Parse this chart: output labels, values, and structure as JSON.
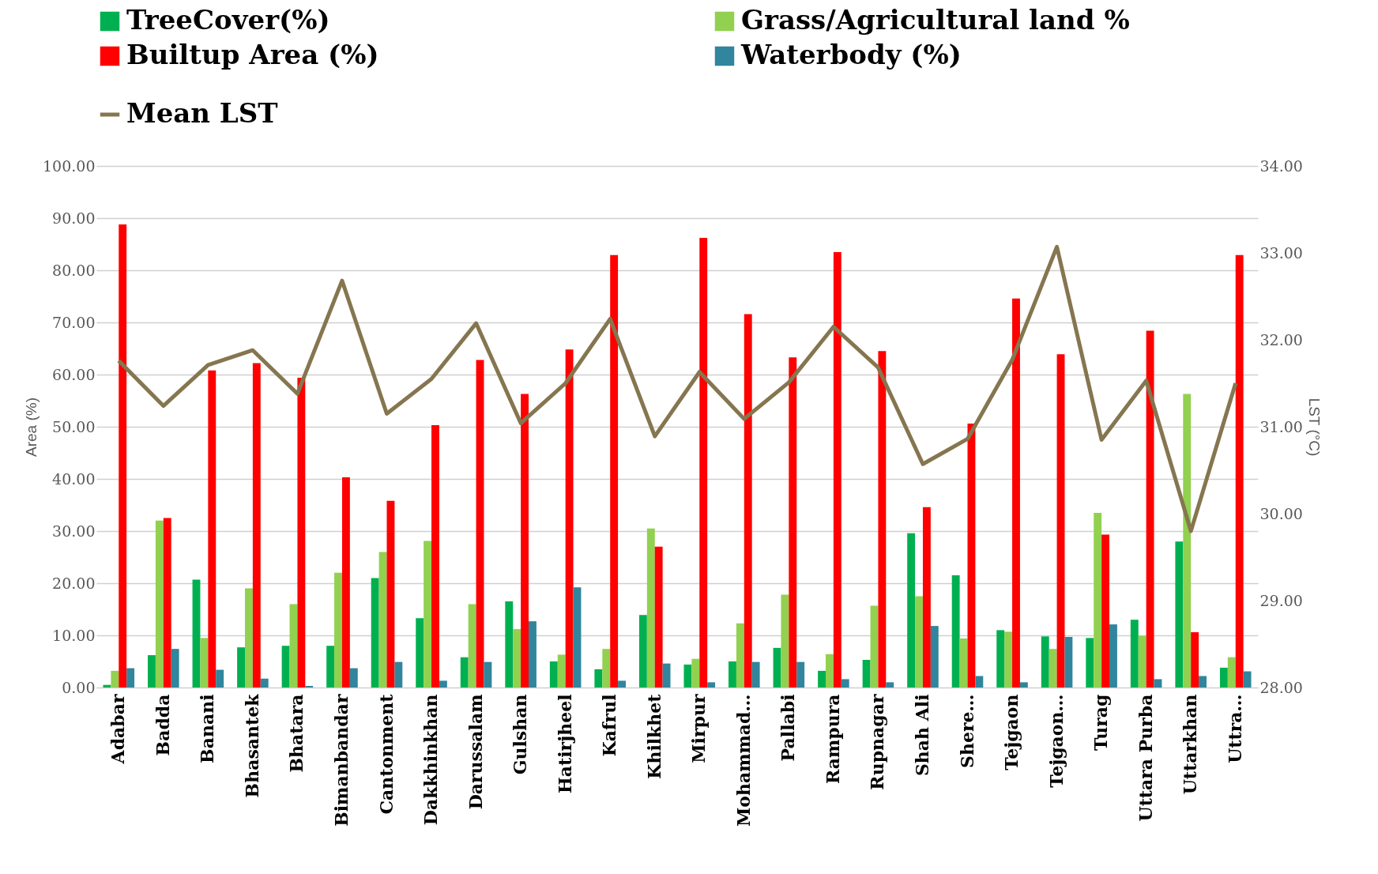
{
  "chart_data": {
    "type": "bar",
    "categories": [
      "Adabar",
      "Badda",
      "Banani",
      "Bhasantek",
      "Bhatara",
      "Bimanbandar",
      "Cantonment",
      "Dakkhinkhan",
      "Darussalam",
      "Gulshan",
      "Hatirjheel",
      "Kafrul",
      "Khilkhet",
      "Mirpur",
      "Mohammad…",
      "Pallabi",
      "Rampura",
      "Rupnagar",
      "Shah Ali",
      "Shere…",
      "Tejgaon",
      "Tejgaon…",
      "Turag",
      "Uttara Purba",
      "Uttarkhan",
      "Uttra…"
    ],
    "series": [
      {
        "name": "TreeCover(%)",
        "color": "#00b050",
        "values": [
          0.5,
          6.2,
          20.7,
          7.7,
          8.0,
          8.0,
          21.0,
          13.3,
          5.8,
          16.5,
          5.0,
          3.5,
          13.9,
          4.4,
          5.0,
          7.6,
          3.2,
          5.3,
          29.6,
          21.5,
          11.0,
          9.8,
          9.5,
          13.0,
          28.0,
          3.8
        ]
      },
      {
        "name": "Grass/Agricultural land %",
        "color": "#92d050",
        "values": [
          3.2,
          32.0,
          9.5,
          19.0,
          16.0,
          22.0,
          26.0,
          28.1,
          16.0,
          11.2,
          6.3,
          7.4,
          30.5,
          5.5,
          12.3,
          17.8,
          6.4,
          15.7,
          17.5,
          9.4,
          10.7,
          7.4,
          33.5,
          9.9,
          56.3,
          5.8
        ]
      },
      {
        "name": "Builtup Area (%)",
        "color": "#ff0000",
        "values": [
          88.8,
          32.5,
          60.8,
          62.2,
          59.4,
          40.3,
          35.8,
          50.3,
          62.8,
          56.3,
          64.8,
          82.9,
          27.0,
          86.2,
          71.6,
          63.3,
          83.5,
          64.5,
          34.6,
          50.6,
          74.6,
          63.9,
          29.3,
          68.4,
          10.6,
          82.9
        ]
      },
      {
        "name": "Waterbody (%)",
        "color": "#31859c",
        "values": [
          3.7,
          7.4,
          3.4,
          1.7,
          0.3,
          3.7,
          4.9,
          1.3,
          4.9,
          12.7,
          19.2,
          1.3,
          4.6,
          1.0,
          4.9,
          4.9,
          1.6,
          1.0,
          11.8,
          2.2,
          1.0,
          9.7,
          12.1,
          1.6,
          2.2,
          3.1
        ]
      },
      {
        "name": "Mean LST",
        "type": "line",
        "axis": "y2",
        "color": "#857650",
        "values": [
          31.76,
          31.24,
          31.71,
          31.88,
          31.38,
          32.68,
          31.15,
          31.55,
          32.19,
          31.04,
          31.5,
          32.24,
          30.89,
          31.63,
          31.09,
          31.51,
          32.15,
          31.68,
          30.57,
          30.86,
          31.77,
          33.07,
          30.85,
          31.53,
          29.8,
          31.5
        ]
      }
    ],
    "ylabel": "Area (%)",
    "y2label": "LST (°C)",
    "ylim": [
      0,
      100
    ],
    "yticks": [
      {
        "value": 0,
        "label": "0.00"
      },
      {
        "value": 10,
        "label": "10.00"
      },
      {
        "value": 20,
        "label": "20.00"
      },
      {
        "value": 30,
        "label": "30.00"
      },
      {
        "value": 40,
        "label": "40.00"
      },
      {
        "value": 50,
        "label": "50.00"
      },
      {
        "value": 60,
        "label": "60.00"
      },
      {
        "value": 70,
        "label": "70.00"
      },
      {
        "value": 80,
        "label": "80.00"
      },
      {
        "value": 90,
        "label": "90.00"
      },
      {
        "value": 100,
        "label": "100.00"
      }
    ],
    "y2lim": [
      28,
      34
    ],
    "y2ticks": [
      {
        "value": 28,
        "label": "28.00"
      },
      {
        "value": 29,
        "label": "29.00"
      },
      {
        "value": 30,
        "label": "30.00"
      },
      {
        "value": 31,
        "label": "31.00"
      },
      {
        "value": 32,
        "label": "32.00"
      },
      {
        "value": 33,
        "label": "33.00"
      },
      {
        "value": 34,
        "label": "34.00"
      }
    ],
    "grid": "y",
    "legend": "top left"
  }
}
